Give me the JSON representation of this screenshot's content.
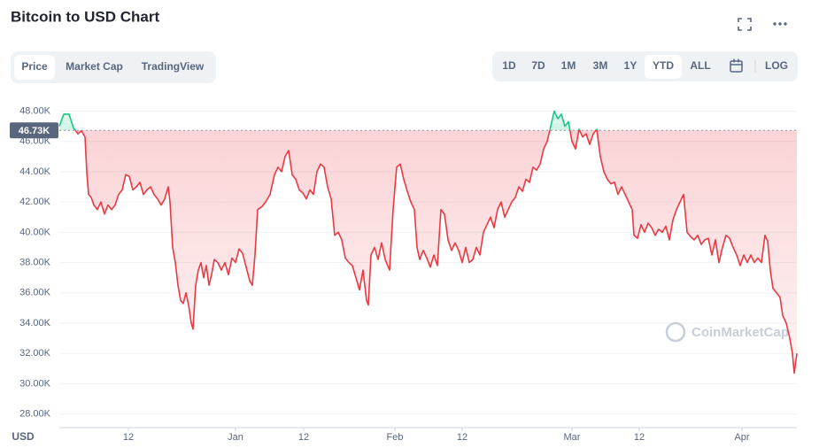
{
  "header": {
    "title": "Bitcoin to USD Chart"
  },
  "tabs": [
    {
      "label": "Price",
      "active": true
    },
    {
      "label": "Market Cap"
    },
    {
      "label": "TradingView"
    }
  ],
  "ranges": [
    {
      "label": "1D"
    },
    {
      "label": "7D"
    },
    {
      "label": "1M"
    },
    {
      "label": "3M"
    },
    {
      "label": "1Y"
    },
    {
      "label": "YTD",
      "active": true
    },
    {
      "label": "ALL"
    }
  ],
  "log_button": "LOG",
  "chart_data": {
    "type": "line",
    "currency": "USD",
    "watermark": "CoinMarketCap",
    "color_above": "#16c784",
    "color_below": "#ea3943",
    "grid": true,
    "reference": {
      "value": 46730,
      "label": "46.73K"
    },
    "xlim": [
      0,
      833
    ],
    "ylim": [
      27100,
      49200
    ],
    "xticks": [
      {
        "value": 78,
        "label": "12"
      },
      {
        "value": 199,
        "label": "Jan"
      },
      {
        "value": 276,
        "label": "12"
      },
      {
        "value": 379,
        "label": "Feb"
      },
      {
        "value": 455,
        "label": "12"
      },
      {
        "value": 579,
        "label": "Mar"
      },
      {
        "value": 655,
        "label": "12"
      },
      {
        "value": 771,
        "label": "Apr"
      }
    ],
    "yticks": [
      {
        "value": 28000,
        "label": "28.00K"
      },
      {
        "value": 30000,
        "label": "30.00K"
      },
      {
        "value": 32000,
        "label": "32.00K"
      },
      {
        "value": 34000,
        "label": "34.00K"
      },
      {
        "value": 36000,
        "label": "36.00K"
      },
      {
        "value": 38000,
        "label": "38.00K"
      },
      {
        "value": 40000,
        "label": "40.00K"
      },
      {
        "value": 42000,
        "label": "42.00K"
      },
      {
        "value": 44000,
        "label": "44.00K"
      },
      {
        "value": 46000,
        "label": "46.00K"
      },
      {
        "value": 48000,
        "label": "48.00K"
      }
    ],
    "x": [
      0,
      5,
      11,
      16,
      21,
      25,
      29,
      31,
      33,
      36,
      39,
      43,
      47,
      51,
      55,
      59,
      63,
      67,
      71,
      75,
      79,
      83,
      87,
      91,
      95,
      99,
      103,
      107,
      111,
      115,
      119,
      123,
      125,
      128,
      131,
      134,
      137,
      140,
      143,
      146,
      149,
      151,
      154,
      157,
      160,
      163,
      166,
      169,
      172,
      175,
      179,
      183,
      187,
      191,
      195,
      199,
      203,
      207,
      211,
      215,
      218,
      221,
      224,
      229,
      233,
      238,
      243,
      247,
      251,
      255,
      259,
      263,
      267,
      271,
      275,
      279,
      283,
      287,
      291,
      295,
      299,
      303,
      307,
      311,
      315,
      319,
      323,
      327,
      331,
      335,
      339,
      343,
      347,
      349,
      352,
      356,
      360,
      364,
      368,
      373,
      377,
      381,
      385,
      389,
      393,
      397,
      401,
      404,
      407,
      411,
      415,
      419,
      423,
      427,
      431,
      435,
      439,
      443,
      447,
      451,
      455,
      459,
      463,
      467,
      471,
      475,
      479,
      483,
      487,
      491,
      495,
      499,
      503,
      507,
      511,
      515,
      519,
      523,
      527,
      531,
      535,
      539,
      543,
      547,
      551,
      555,
      559,
      563,
      567,
      571,
      575,
      579,
      583,
      587,
      591,
      595,
      599,
      603,
      607,
      611,
      615,
      619,
      623,
      627,
      631,
      635,
      639,
      643,
      647,
      649,
      653,
      657,
      661,
      665,
      669,
      673,
      677,
      681,
      685,
      689,
      693,
      697,
      701,
      705,
      709,
      713,
      717,
      721,
      725,
      729,
      733,
      737,
      741,
      745,
      749,
      753,
      757,
      761,
      765,
      769,
      773,
      777,
      781,
      785,
      789,
      793,
      797,
      800,
      803,
      806,
      810,
      814,
      817,
      821,
      825,
      828,
      830,
      833
    ],
    "values": [
      47000,
      47800,
      47800,
      46900,
      46500,
      46700,
      46300,
      44000,
      42500,
      42300,
      41800,
      41500,
      42000,
      41200,
      41800,
      41500,
      41800,
      42500,
      42800,
      43800,
      43700,
      42800,
      43000,
      43300,
      42500,
      42800,
      43000,
      42500,
      42200,
      41800,
      42200,
      43000,
      42000,
      39000,
      38000,
      36500,
      35500,
      35300,
      36000,
      35200,
      34000,
      33600,
      36500,
      37500,
      38000,
      37000,
      37800,
      36500,
      37200,
      38200,
      38000,
      37500,
      38000,
      37200,
      38300,
      38000,
      38900,
      38600,
      37700,
      36800,
      36500,
      38500,
      41500,
      41700,
      42000,
      42500,
      43800,
      44300,
      44000,
      45000,
      45400,
      43800,
      43500,
      42800,
      42600,
      42200,
      42800,
      42500,
      44000,
      44500,
      44300,
      43000,
      42200,
      39800,
      40000,
      39500,
      38300,
      38000,
      37800,
      37000,
      36200,
      37500,
      35500,
      35200,
      38500,
      39000,
      38200,
      39300,
      38200,
      37500,
      41500,
      44300,
      44500,
      43500,
      42700,
      42000,
      41500,
      39000,
      38200,
      38800,
      38300,
      37700,
      38500,
      37800,
      41500,
      41200,
      39500,
      38800,
      39300,
      38800,
      38000,
      39000,
      38000,
      38200,
      39000,
      38500,
      40000,
      40500,
      41000,
      40300,
      41500,
      42000,
      41000,
      41500,
      42000,
      42300,
      43000,
      42700,
      43500,
      43300,
      44300,
      44100,
      44500,
      45500,
      46000,
      47000,
      48000,
      47500,
      47800,
      47000,
      47300,
      46000,
      45500,
      46800,
      46300,
      46500,
      45800,
      46500,
      46800,
      45000,
      44000,
      43500,
      43200,
      43300,
      42500,
      43000,
      42500,
      42000,
      41500,
      39800,
      39600,
      40500,
      40000,
      40600,
      40300,
      39800,
      40200,
      40000,
      40400,
      39500,
      40800,
      41500,
      42000,
      42500,
      40000,
      39700,
      39500,
      39800,
      39200,
      39500,
      39600,
      38500,
      39500,
      38000,
      39000,
      39800,
      39600,
      39000,
      38500,
      37800,
      38500,
      38000,
      38500,
      38000,
      38300,
      38000,
      39800,
      39400,
      37500,
      36300,
      36000,
      35700,
      34500,
      34000,
      33000,
      32000,
      30700,
      32000
    ]
  }
}
